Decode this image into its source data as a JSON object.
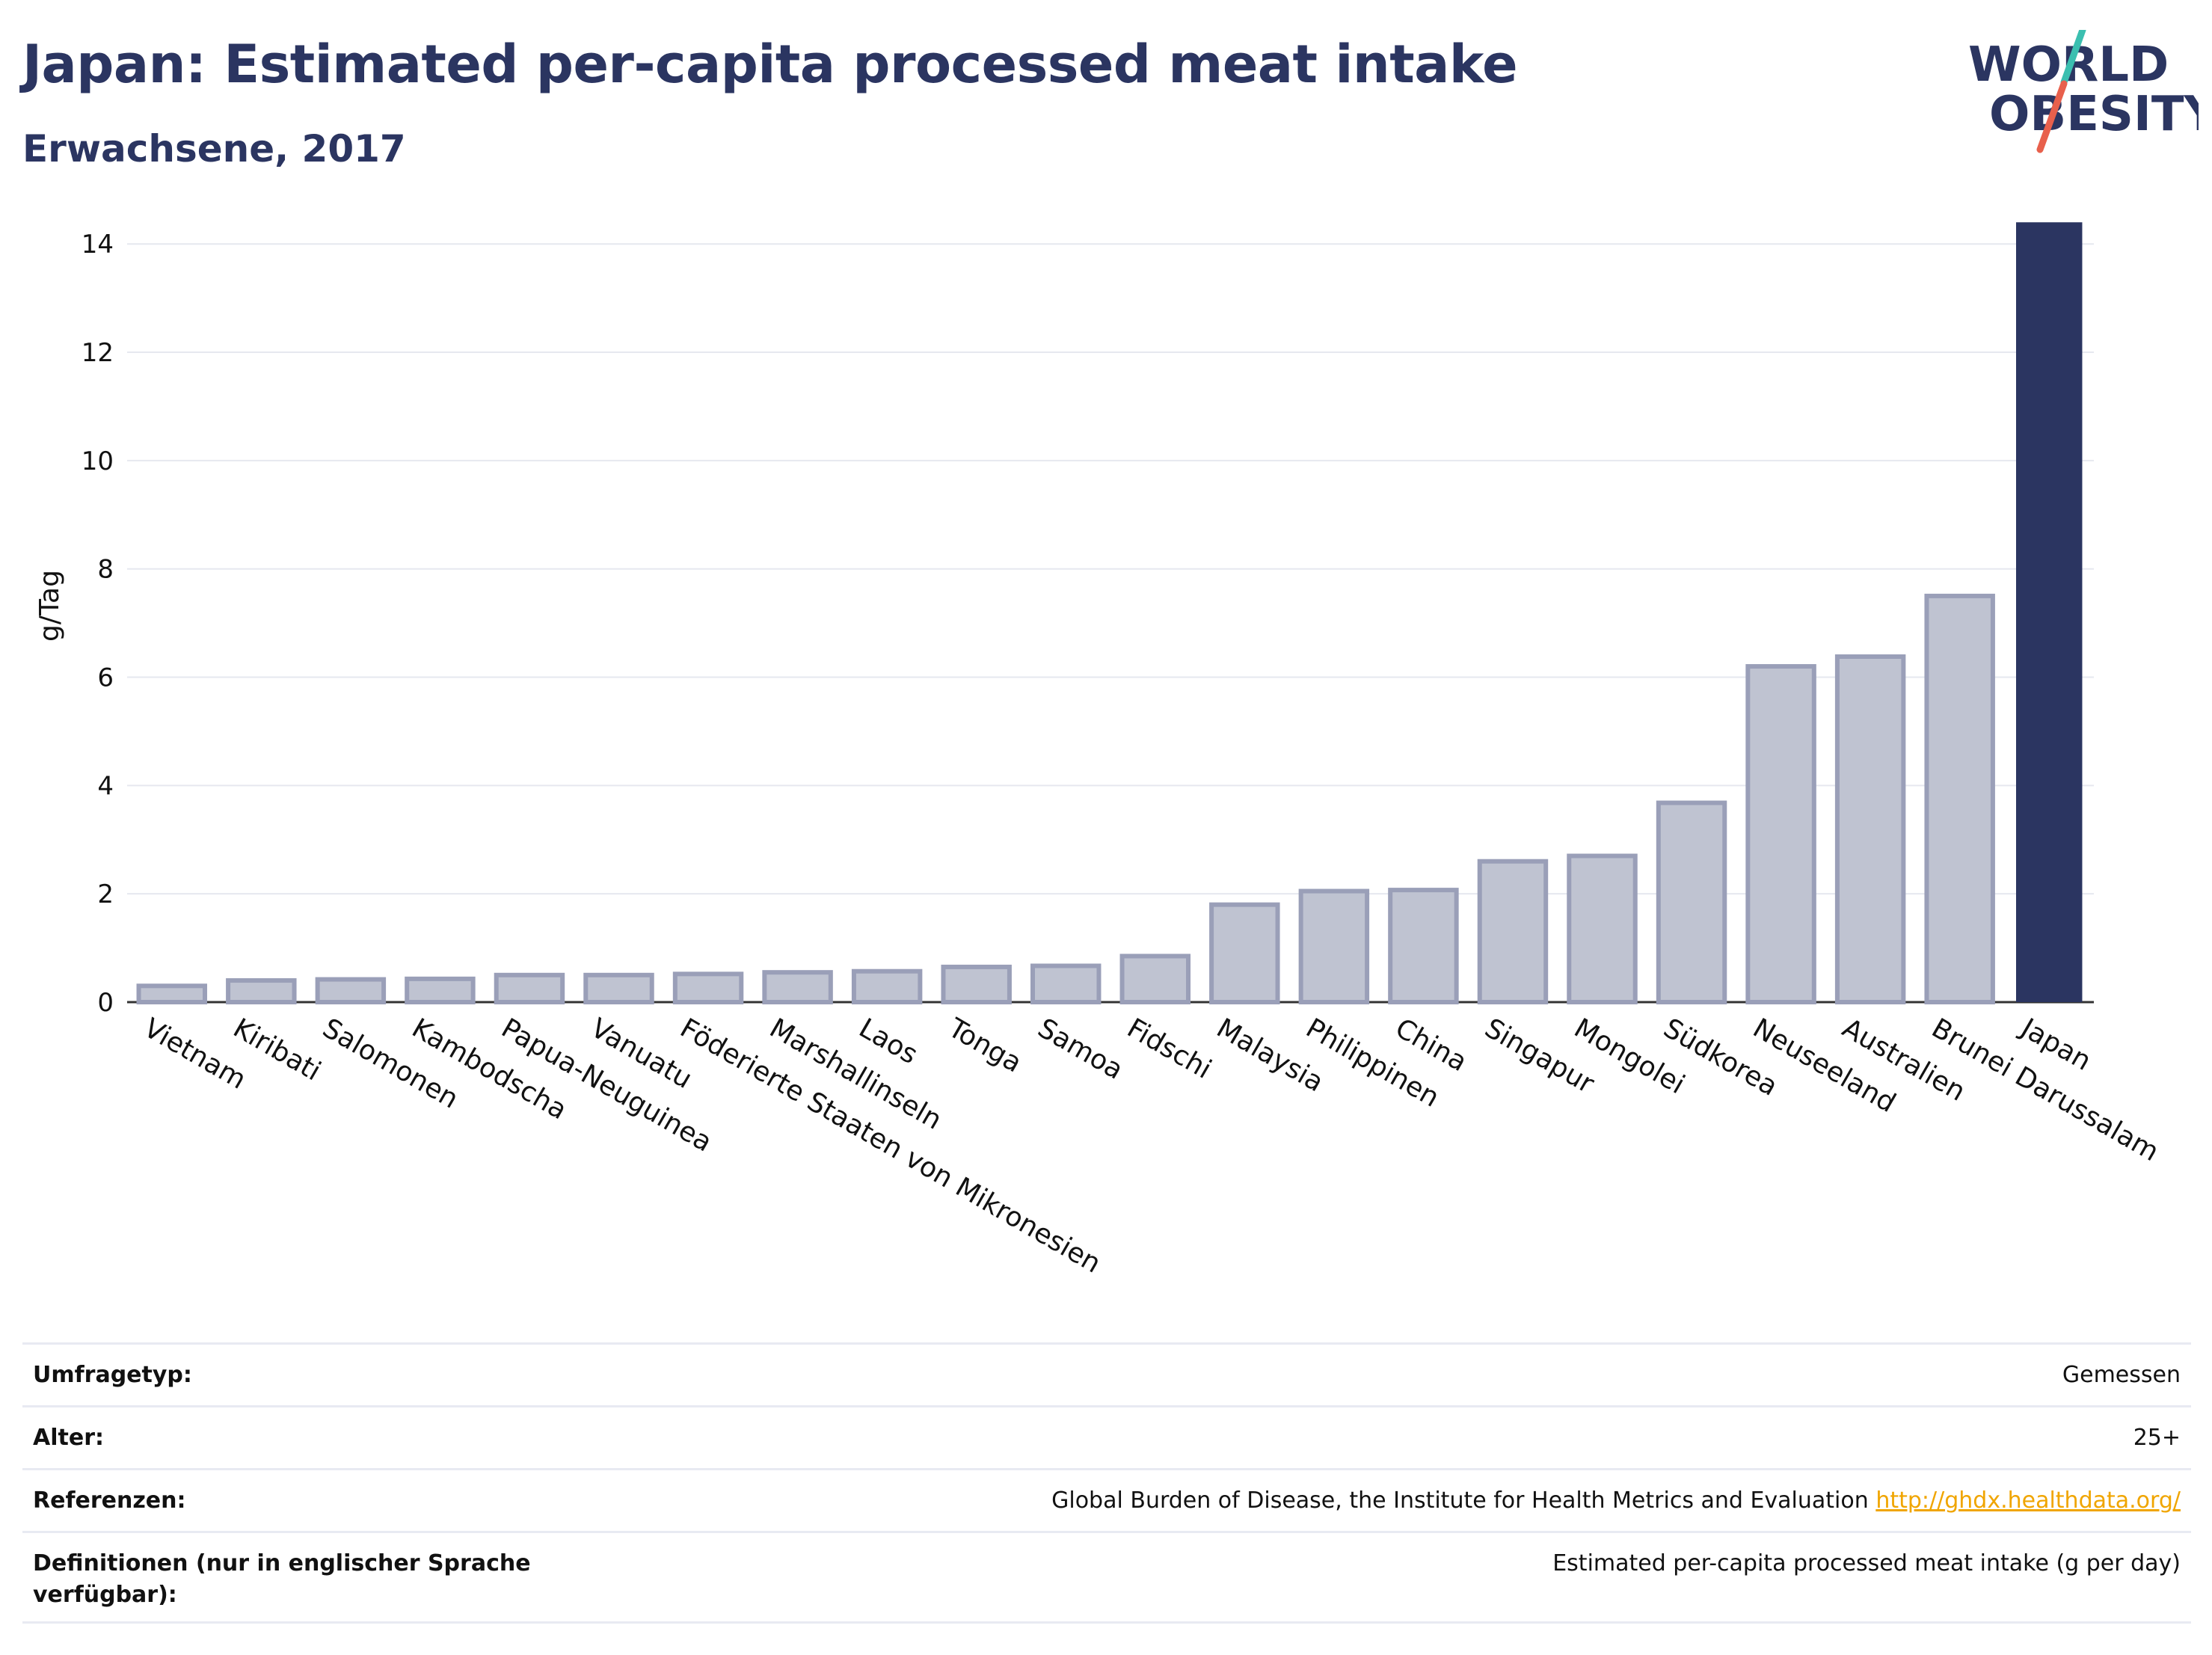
{
  "header": {
    "title": "Japan: Estimated per-capita processed meat intake",
    "subtitle": "Erwachsene, 2017"
  },
  "logo": {
    "line1": "WORLD",
    "line2": "OBESITY",
    "slash_colors": [
      "#3bbfb0",
      "#e8604c"
    ]
  },
  "colors": {
    "highlight": "#2b3561",
    "bar_fill": "#bfc3d1",
    "bar_stroke": "#9a9fb8",
    "gridline": "#e6e8ef",
    "text": "#2b3561",
    "link": "#f0a500"
  },
  "chart_data": {
    "type": "bar",
    "ylabel": "g/Tag",
    "ylim": [
      0,
      14.5
    ],
    "yticks": [
      0,
      2,
      4,
      6,
      8,
      10,
      12,
      14
    ],
    "grid": true,
    "highlight": "Japan",
    "categories": [
      "Vietnam",
      "Kiribati",
      "Salomonen",
      "Kambodscha",
      "Papua-Neuguinea",
      "Vanuatu",
      "Föderierte Staaten von Mikronesien",
      "Marshallinseln",
      "Laos",
      "Tonga",
      "Samoa",
      "Fidschi",
      "Malaysia",
      "Philippinen",
      "China",
      "Singapur",
      "Mongolei",
      "Südkorea",
      "Neuseeland",
      "Australien",
      "Brunei Darussalam",
      "Japan"
    ],
    "values": [
      0.3,
      0.4,
      0.42,
      0.43,
      0.5,
      0.5,
      0.52,
      0.55,
      0.57,
      0.65,
      0.67,
      0.85,
      1.8,
      2.05,
      2.07,
      2.6,
      2.7,
      3.68,
      6.2,
      6.38,
      7.5,
      14.4
    ]
  },
  "meta": {
    "rows": [
      {
        "label": "Umfragetyp:",
        "value": "Gemessen"
      },
      {
        "label": "Alter:",
        "value": "25+"
      },
      {
        "label": "Referenzen:",
        "value": "Global Burden of Disease, the Institute for Health Metrics and Evaluation",
        "link": "http://ghdx.healthdata.org/"
      },
      {
        "label": "Definitionen (nur in englischer Sprache verfügbar):",
        "value": "Estimated per-capita processed meat intake (g per day)"
      }
    ]
  }
}
